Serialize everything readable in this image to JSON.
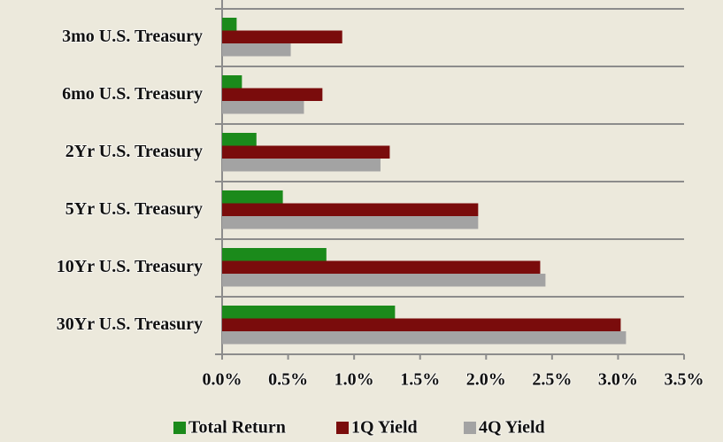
{
  "chart_data": {
    "type": "barh",
    "categories": [
      "3mo U.S. Treasury",
      "6mo U.S. Treasury",
      "2Yr U.S. Treasury",
      "5Yr U.S. Treasury",
      "10Yr U.S. Treasury",
      "30Yr U.S. Treasury"
    ],
    "series": [
      {
        "name": "Total Return",
        "color": "#1b8a1b",
        "values": [
          0.11,
          0.15,
          0.26,
          0.46,
          0.79,
          1.31
        ]
      },
      {
        "name": "1Q Yield",
        "color": "#7a0c0c",
        "values": [
          0.91,
          0.76,
          1.27,
          1.94,
          2.41,
          3.02
        ]
      },
      {
        "name": "4Q Yield",
        "color": "#a3a3a3",
        "values": [
          0.52,
          0.62,
          1.2,
          1.94,
          2.45,
          3.06
        ]
      }
    ],
    "xlim": [
      0,
      3.5
    ],
    "xticks": [
      {
        "value": 0,
        "label": "0.0%"
      },
      {
        "value": 0.5,
        "label": "0.5%"
      },
      {
        "value": 1,
        "label": "1.0%"
      },
      {
        "value": 1.5,
        "label": "1.5%"
      },
      {
        "value": 2,
        "label": "2.0%"
      },
      {
        "value": 2.5,
        "label": "2.5%"
      },
      {
        "value": 3,
        "label": "3.0%"
      },
      {
        "value": 3.5,
        "label": "3.5%"
      }
    ],
    "grid": false,
    "legend": "bottom"
  }
}
